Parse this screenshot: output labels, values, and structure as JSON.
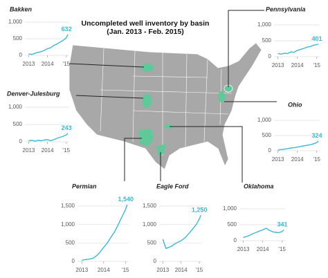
{
  "title": "Uncompleted well inventory by basin",
  "subtitle": "(Jan. 2013 - Feb. 2015)",
  "chart_data": [
    {
      "type": "line",
      "title": "Bakken",
      "color": "#3bb7d6",
      "grid": true,
      "x": [
        2013,
        2013.17,
        2013.33,
        2013.5,
        2013.67,
        2013.83,
        2014,
        2014.17,
        2014.33,
        2014.5,
        2014.67,
        2014.83,
        2015,
        2015.08
      ],
      "values": [
        40,
        30,
        60,
        90,
        110,
        150,
        200,
        230,
        300,
        340,
        400,
        450,
        530,
        632
      ],
      "xlim": [
        2012.8,
        2015.15
      ],
      "xticks": [
        2013,
        2014,
        {
          "value": 2015,
          "label": "'15"
        }
      ],
      "ylim": [
        0,
        1000
      ],
      "yticks": [
        0,
        500,
        {
          "value": 1000,
          "label": "1,000"
        }
      ]
    },
    {
      "type": "line",
      "title": "Denver-Julesburg",
      "color": "#3bb7d6",
      "grid": true,
      "x": [
        2013,
        2013.17,
        2013.33,
        2013.5,
        2013.67,
        2013.83,
        2014,
        2014.17,
        2014.33,
        2014.5,
        2014.67,
        2014.83,
        2015,
        2015.08
      ],
      "values": [
        30,
        40,
        20,
        40,
        30,
        50,
        60,
        30,
        60,
        100,
        130,
        160,
        200,
        243
      ],
      "xlim": [
        2012.8,
        2015.15
      ],
      "xticks": [
        2013,
        2014,
        {
          "value": 2015,
          "label": "'15"
        }
      ],
      "ylim": [
        0,
        1000
      ],
      "yticks": [
        0,
        500,
        {
          "value": 1000,
          "label": "1,000"
        }
      ]
    },
    {
      "type": "line",
      "title": "Permian",
      "color": "#3bb7d6",
      "grid": true,
      "x": [
        2013,
        2013.17,
        2013.33,
        2013.5,
        2013.67,
        2013.83,
        2014,
        2014.17,
        2014.33,
        2014.5,
        2014.67,
        2014.83,
        2015,
        2015.08
      ],
      "values": [
        30,
        50,
        60,
        80,
        150,
        250,
        380,
        500,
        650,
        800,
        1000,
        1200,
        1400,
        1540
      ],
      "value_labels": [
        null,
        null,
        null,
        null,
        null,
        null,
        null,
        null,
        null,
        null,
        null,
        null,
        null,
        "1,540"
      ],
      "xlim": [
        2012.8,
        2015.15
      ],
      "xticks": [
        2013,
        2014,
        {
          "value": 2015,
          "label": "'15"
        }
      ],
      "ylim": [
        0,
        1500
      ],
      "yticks": [
        0,
        500,
        {
          "value": 1000,
          "label": "1,000"
        },
        {
          "value": 1500,
          "label": "1,500"
        }
      ]
    },
    {
      "type": "line",
      "title": "Eagle Ford",
      "color": "#3bb7d6",
      "grid": true,
      "x": [
        2013,
        2013.17,
        2013.33,
        2013.5,
        2013.67,
        2013.83,
        2014,
        2014.17,
        2014.33,
        2014.5,
        2014.67,
        2014.83,
        2015,
        2015.08
      ],
      "values": [
        600,
        350,
        380,
        420,
        480,
        520,
        560,
        620,
        700,
        800,
        900,
        1000,
        1150,
        1250
      ],
      "value_labels": [
        null,
        null,
        null,
        null,
        null,
        null,
        null,
        null,
        null,
        null,
        null,
        null,
        null,
        "1,250"
      ],
      "xlim": [
        2012.8,
        2015.15
      ],
      "xticks": [
        2013,
        2014,
        {
          "value": 2015,
          "label": "'15"
        }
      ],
      "ylim": [
        0,
        1500
      ],
      "yticks": [
        0,
        500,
        {
          "value": 1000,
          "label": "1,000"
        },
        {
          "value": 1500,
          "label": "1,500"
        }
      ]
    },
    {
      "type": "line",
      "title": "Oklahoma",
      "color": "#3bb7d6",
      "grid": true,
      "x": [
        2013,
        2013.17,
        2013.33,
        2013.5,
        2013.67,
        2013.83,
        2014,
        2014.17,
        2014.33,
        2014.5,
        2014.67,
        2014.83,
        2015,
        2015.08
      ],
      "values": [
        100,
        130,
        170,
        220,
        260,
        300,
        340,
        390,
        330,
        280,
        260,
        250,
        290,
        341
      ],
      "xlim": [
        2012.8,
        2015.15
      ],
      "xticks": [
        2013,
        2014,
        {
          "value": 2015,
          "label": "'15"
        }
      ],
      "ylim": [
        0,
        1000
      ],
      "yticks": [
        0,
        500,
        {
          "value": 1000,
          "label": "1,000"
        }
      ]
    },
    {
      "type": "line",
      "title": "Pennsylvania",
      "color": "#3bb7d6",
      "grid": true,
      "x": [
        2013,
        2013.17,
        2013.33,
        2013.5,
        2013.67,
        2013.83,
        2014,
        2014.17,
        2014.33,
        2014.5,
        2014.67,
        2014.83,
        2015,
        2015.08
      ],
      "values": [
        100,
        80,
        110,
        100,
        150,
        140,
        200,
        230,
        260,
        300,
        320,
        360,
        380,
        401
      ],
      "xlim": [
        2012.8,
        2015.15
      ],
      "xticks": [
        2013,
        2014,
        {
          "value": 2015,
          "label": "'15"
        }
      ],
      "ylim": [
        0,
        1000
      ],
      "yticks": [
        0,
        500,
        {
          "value": 1000,
          "label": "1,000"
        }
      ]
    },
    {
      "type": "line",
      "title": "Ohio",
      "color": "#3bb7d6",
      "grid": true,
      "x": [
        2013,
        2013.17,
        2013.33,
        2013.5,
        2013.67,
        2013.83,
        2014,
        2014.17,
        2014.33,
        2014.5,
        2014.67,
        2014.83,
        2015,
        2015.08
      ],
      "values": [
        20,
        40,
        50,
        70,
        90,
        100,
        120,
        140,
        160,
        180,
        200,
        230,
        270,
        324
      ],
      "xlim": [
        2012.8,
        2015.15
      ],
      "xticks": [
        2013,
        2014,
        {
          "value": 2015,
          "label": "'15"
        }
      ],
      "ylim": [
        0,
        1000
      ],
      "yticks": [
        0,
        500,
        {
          "value": 1000,
          "label": "1,000"
        }
      ]
    }
  ]
}
